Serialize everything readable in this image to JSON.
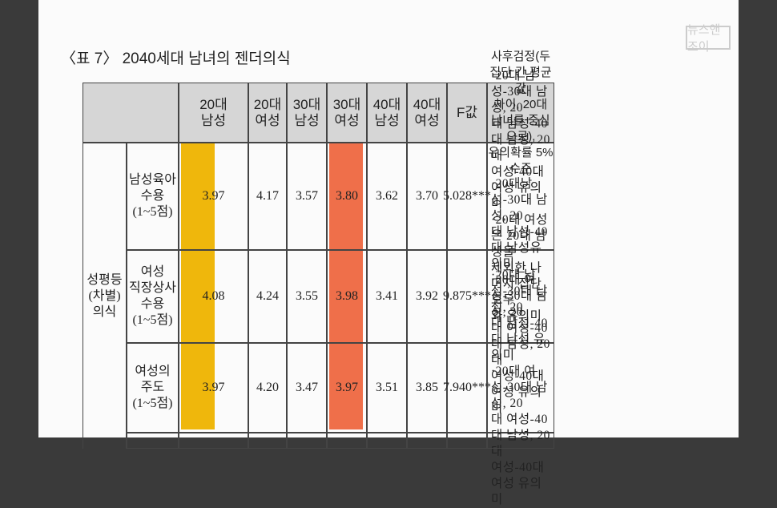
{
  "title": "〈표 7〉 2040세대 남녀의 젠더의식",
  "logo": "뉴스앤조이",
  "table": {
    "headers": [
      [
        "20대",
        "남성"
      ],
      [
        "20대",
        "여성"
      ],
      [
        "30대",
        "남성"
      ],
      [
        "30대",
        "여성"
      ],
      [
        "40대",
        "남성"
      ],
      [
        "40대",
        "여성"
      ],
      [
        "F값"
      ],
      [
        "사후검정(두 집단 간 평균값",
        "차이, 20대 남녀를 중심으로),",
        "유의확률 5% 수준"
      ]
    ],
    "group": [
      "성평등",
      "(차별)",
      "의식"
    ],
    "rows": [
      {
        "label": [
          "남성육아",
          "수용",
          "(1~5점)"
        ],
        "values": [
          "3.97",
          "4.17",
          "3.57",
          "3.80",
          "3.62",
          "3.70",
          "5.028***"
        ],
        "post": [
          "·20대 남성-30대 남성, 20",
          "대 남성-40대 남성, 20대",
          "여성-40대 여성 유의미",
          "·20대 여성은 20대 남성을",
          "제외한 나머지 집단 모두",
          "와 유의미"
        ]
      },
      {
        "label": [
          "여성",
          "직장상사",
          "수용",
          "(1~5점)"
        ],
        "values": [
          "4.08",
          "4.24",
          "3.55",
          "3.98",
          "3.41",
          "3.92",
          "9.875***"
        ],
        "post": [
          "·20대남성-30대 남성, 20",
          "대 남성-40대 남성유의미",
          "·20대 여성-30대 남성, 20",
          "대 여성-40대 남성, 20대",
          "여성-40대 여성 유의미"
        ]
      },
      {
        "label": [
          "여성의",
          "주도",
          "(1~5점)"
        ],
        "values": [
          "3.97",
          "4.20",
          "3.47",
          "3.97",
          "3.51",
          "3.85",
          "7.940***"
        ],
        "post": [
          "·20대 남성-30대 남성, 20",
          "대 남성-40대 남성 유의미",
          "·20대 여성-30대 남성, 20",
          "대 여성-40대 남성, 20대",
          "여성-40대 여성 유의미"
        ]
      }
    ]
  }
}
